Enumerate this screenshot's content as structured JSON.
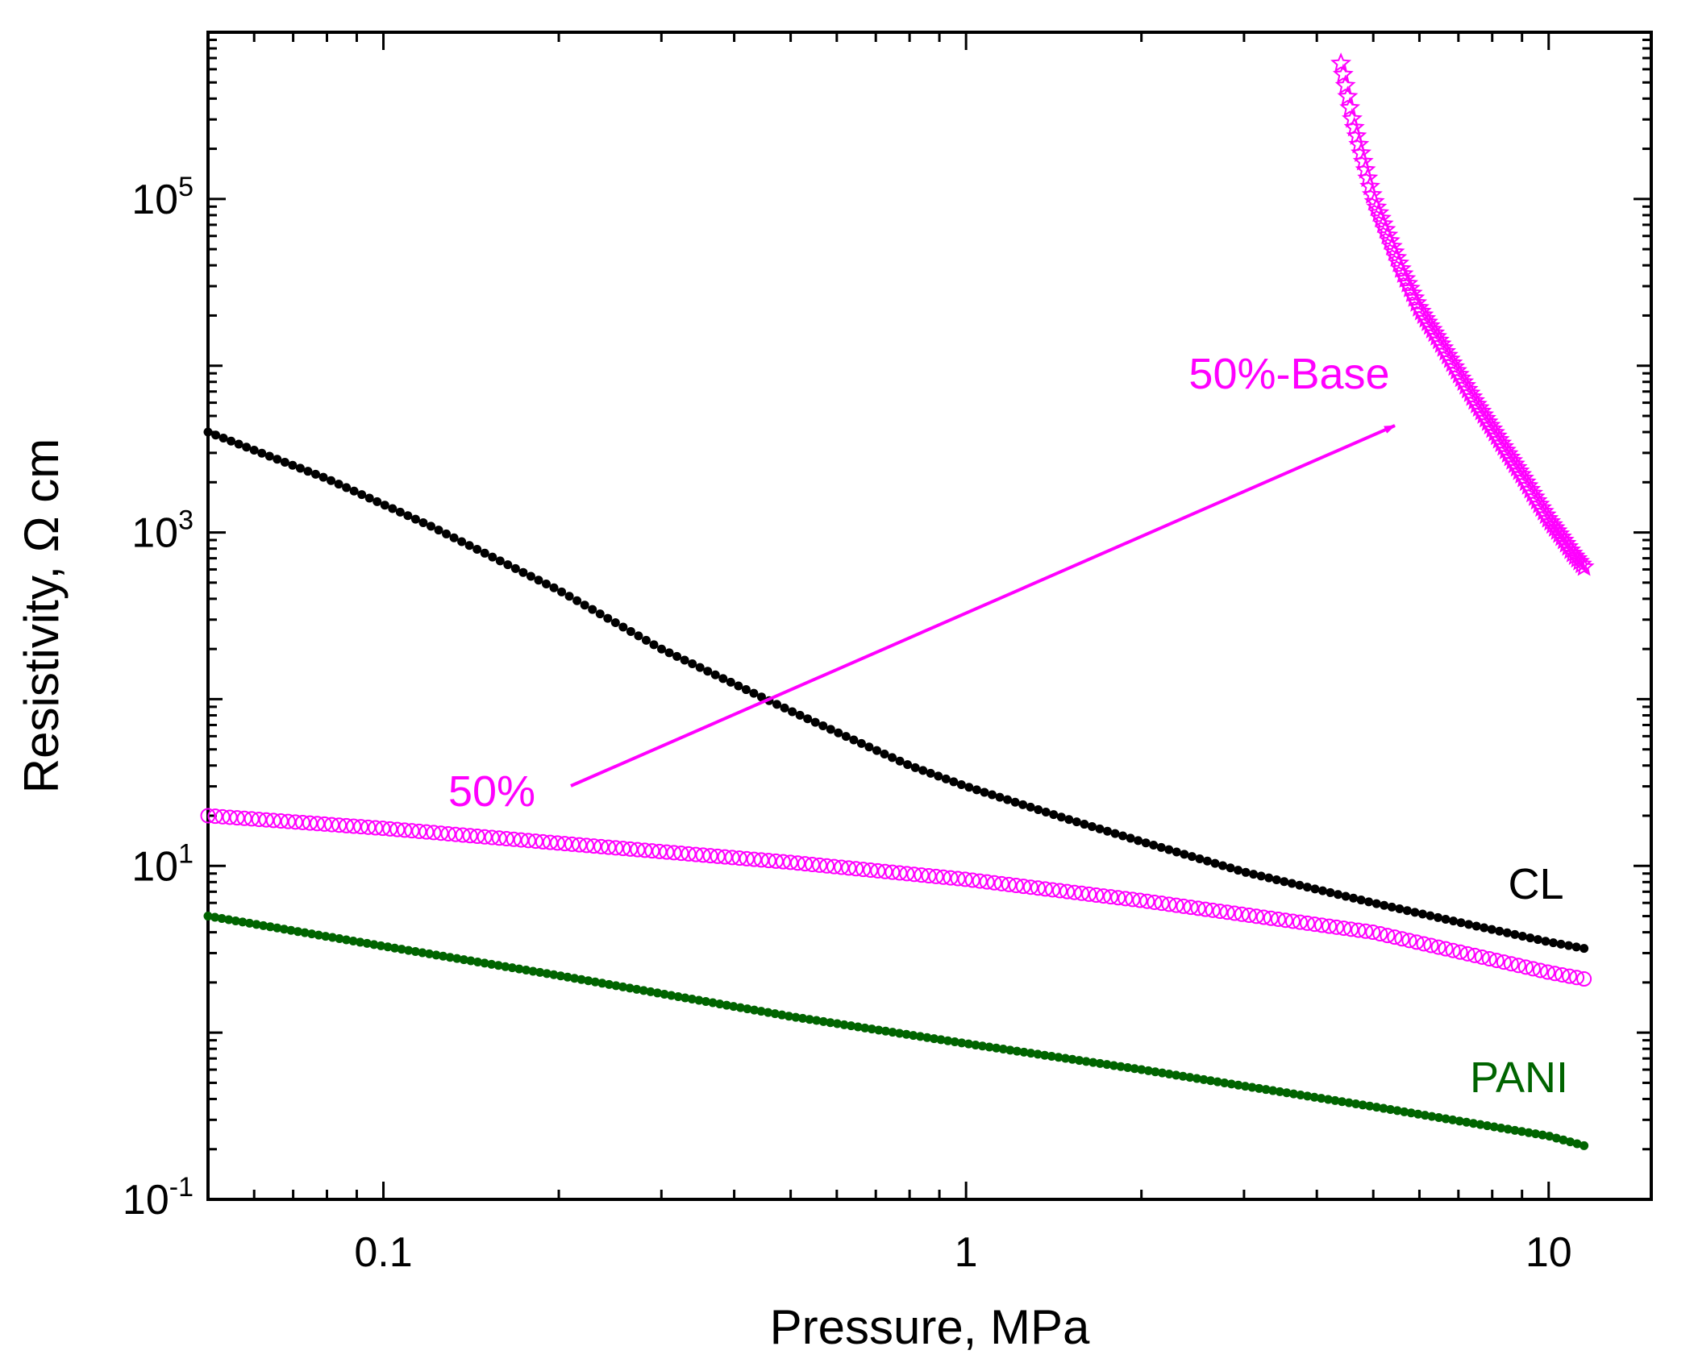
{
  "chart_data": {
    "type": "scatter",
    "xscale": "log",
    "yscale": "log",
    "xlim": [
      0.05,
      15
    ],
    "ylim": [
      0.1,
      1000000
    ],
    "xlabel": "Pressure, MPa",
    "ylabel": "Resistivity, Ω cm",
    "x_ticks": [
      {
        "value": 0.1,
        "label": "0.1"
      },
      {
        "value": 1,
        "label": "1"
      },
      {
        "value": 10,
        "label": "10"
      }
    ],
    "y_ticks": [
      {
        "value": 0.1,
        "base": "10",
        "exp": "-1"
      },
      {
        "value": 10,
        "base": "10",
        "exp": "1"
      },
      {
        "value": 1000,
        "base": "10",
        "exp": "3"
      },
      {
        "value": 100000,
        "base": "10",
        "exp": "5"
      }
    ],
    "series": [
      {
        "name": "CL",
        "color": "#000000",
        "marker": "filled-circle",
        "x": [
          0.05,
          0.08,
          0.12,
          0.2,
          0.3,
          0.5,
          0.8,
          1.0,
          1.5,
          2.0,
          3.0,
          5.0,
          7.0,
          10.0,
          11.5
        ],
        "y": [
          4000,
          2100,
          1100,
          450,
          200,
          85,
          40,
          30,
          19,
          14,
          9.2,
          6.0,
          4.6,
          3.5,
          3.2
        ]
      },
      {
        "name": "50%",
        "color": "#ff00ff",
        "marker": "open-circle",
        "x": [
          0.05,
          0.1,
          0.2,
          0.5,
          1.0,
          2.0,
          5.0,
          10.0,
          11.5
        ],
        "y": [
          20,
          16.8,
          13.7,
          10.5,
          8.3,
          6.2,
          4.0,
          2.3,
          2.1
        ]
      },
      {
        "name": "PANI",
        "color": "#006400",
        "marker": "filled-circle",
        "x": [
          0.05,
          0.1,
          0.2,
          0.5,
          1.0,
          2.0,
          5.0,
          10.0,
          11.5
        ],
        "y": [
          5.0,
          3.3,
          2.2,
          1.25,
          0.86,
          0.6,
          0.36,
          0.24,
          0.21
        ]
      },
      {
        "name": "50%-Base",
        "color": "#ff00ff",
        "marker": "open-star",
        "x": [
          4.4,
          4.6,
          4.8,
          5.0,
          5.3,
          5.6,
          6.0,
          6.5,
          7.0,
          7.5,
          8.0,
          8.5,
          9.0,
          9.5,
          10.0,
          10.5,
          11.0,
          11.5
        ],
        "y": [
          650000,
          300000,
          170000,
          100000,
          60000,
          37000,
          22000,
          14000,
          9000,
          6000,
          4200,
          3000,
          2200,
          1600,
          1200,
          950,
          750,
          620
        ]
      }
    ],
    "annotations": {
      "curve_labels": [
        {
          "text": "CL",
          "color": "#000000"
        },
        {
          "text": "PANI",
          "color": "#006400"
        },
        {
          "text": "50%",
          "color": "#ff00ff"
        },
        {
          "text": "50%-Base",
          "color": "#ff00ff"
        }
      ],
      "arrow": {
        "from_label": "50%",
        "to_label": "50%-Base",
        "color": "#ff00ff"
      }
    }
  }
}
